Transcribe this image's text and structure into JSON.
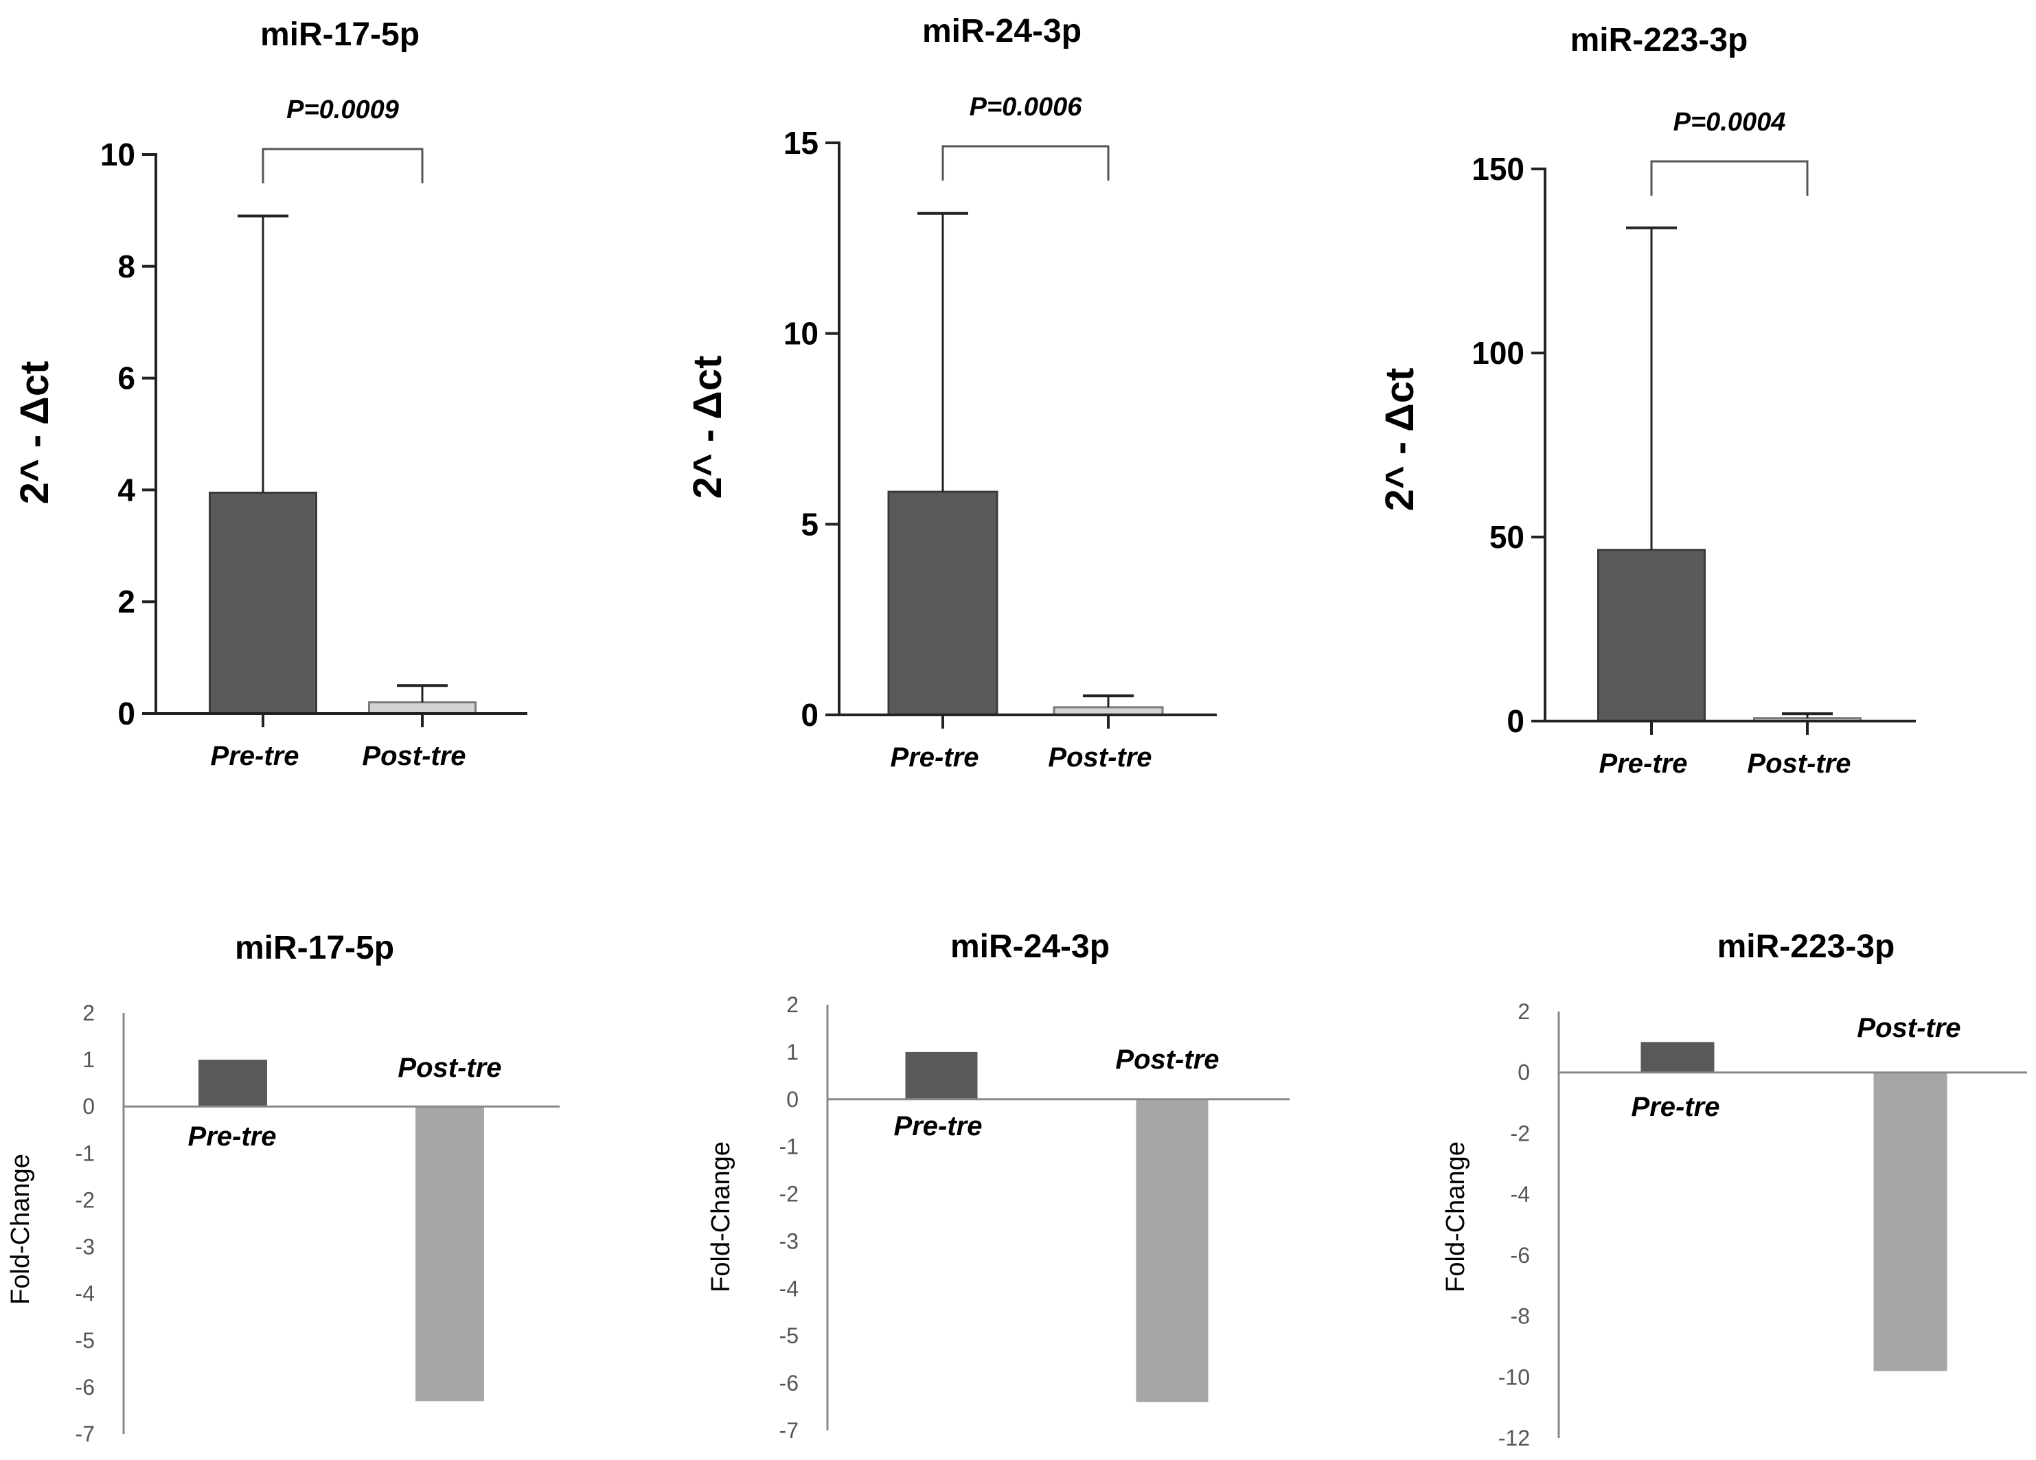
{
  "chart_data": [
    {
      "type": "bar",
      "title": "miR-17-5p",
      "ylabel": "2^ - Δct",
      "xlabel": "",
      "categories": [
        "Pre-tre",
        "Post-tre"
      ],
      "values": [
        3.95,
        0.2
      ],
      "error_upper": [
        8.9,
        0.5
      ],
      "ylim": [
        0,
        10
      ],
      "yticks": [
        0,
        2,
        4,
        6,
        8,
        10
      ],
      "significance": "P=0.0009",
      "colors": [
        "#5a5a5a",
        "#d4d4d4"
      ]
    },
    {
      "type": "bar",
      "title": "miR-24-3p",
      "ylabel": "2^ - Δct",
      "xlabel": "",
      "categories": [
        "Pre-tre",
        "Post-tre"
      ],
      "values": [
        5.85,
        0.2
      ],
      "error_upper": [
        13.15,
        0.5
      ],
      "ylim": [
        0,
        15
      ],
      "yticks": [
        0,
        5,
        10,
        15
      ],
      "significance": "P=0.0006",
      "colors": [
        "#5a5a5a",
        "#d4d4d4"
      ]
    },
    {
      "type": "bar",
      "title": "miR-223-3p",
      "ylabel": "2^ - Δct",
      "xlabel": "",
      "categories": [
        "Pre-tre",
        "Post-tre"
      ],
      "values": [
        46.5,
        0.8
      ],
      "error_upper": [
        134,
        2
      ],
      "ylim": [
        0,
        150
      ],
      "yticks": [
        0,
        50,
        100,
        150
      ],
      "significance": "P=0.0004",
      "colors": [
        "#5a5a5a",
        "#d4d4d4"
      ]
    },
    {
      "type": "bar",
      "title": "miR-17-5p",
      "ylabel": "Fold-Change",
      "xlabel": "",
      "categories": [
        "Pre-tre",
        "Post-tre"
      ],
      "values": [
        1,
        -6.3
      ],
      "ylim": [
        -7,
        2
      ],
      "yticks": [
        2,
        1,
        0,
        -1,
        -2,
        -3,
        -4,
        -5,
        -6,
        -7
      ],
      "colors": [
        "#595959",
        "#a8a5a5"
      ]
    },
    {
      "type": "bar",
      "title": "miR-24-3p",
      "ylabel": "Fold-Change",
      "xlabel": "",
      "categories": [
        "Pre-tre",
        "Post-tre"
      ],
      "values": [
        1,
        -6.4
      ],
      "ylim": [
        -7,
        2
      ],
      "yticks": [
        2,
        1,
        0,
        -1,
        -2,
        -3,
        -4,
        -5,
        -6,
        -7
      ],
      "colors": [
        "#595959",
        "#a8a5a5"
      ]
    },
    {
      "type": "bar",
      "title": "miR-223-3p",
      "ylabel": "Fold-Change",
      "xlabel": "",
      "categories": [
        "Pre-tre",
        "Post-tre"
      ],
      "values": [
        1,
        -9.8
      ],
      "ylim": [
        -12,
        2
      ],
      "yticks": [
        2,
        0,
        -2,
        -4,
        -6,
        -8,
        -10,
        -12
      ],
      "colors": [
        "#595959",
        "#a8a5a5"
      ]
    }
  ]
}
